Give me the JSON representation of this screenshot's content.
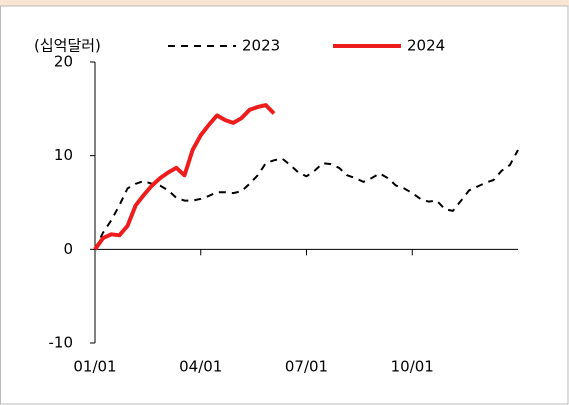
{
  "chart_data": {
    "type": "line",
    "y_label": "(십억달러)",
    "categories": [
      "01/01",
      null,
      null,
      null,
      null,
      null,
      null,
      null,
      null,
      null,
      null,
      null,
      null,
      "04/01",
      null,
      null,
      null,
      null,
      null,
      null,
      null,
      null,
      null,
      null,
      null,
      null,
      "07/01",
      null,
      null,
      null,
      null,
      null,
      null,
      null,
      null,
      null,
      null,
      null,
      null,
      "10/01",
      null,
      null,
      null,
      null,
      null,
      null,
      null,
      null,
      null,
      null,
      null,
      null,
      null
    ],
    "series": [
      {
        "name": "2023",
        "color": "#000000",
        "dash": true,
        "values": [
          0,
          1.8,
          3.1,
          4.7,
          6.5,
          7.0,
          7.3,
          7.0,
          6.8,
          6.3,
          5.5,
          5.2,
          5.2,
          5.4,
          5.7,
          6.1,
          6.1,
          6.0,
          6.2,
          7.0,
          7.9,
          9.2,
          9.5,
          9.7,
          9.0,
          8.2,
          7.8,
          8.4,
          9.2,
          9.1,
          8.7,
          7.9,
          7.6,
          7.2,
          7.6,
          8.1,
          7.6,
          6.8,
          6.5,
          6.0,
          5.4,
          5.1,
          5.2,
          4.3,
          4.1,
          5.2,
          6.3,
          6.7,
          7.1,
          7.4,
          8.4,
          9.0,
          10.6
        ]
      },
      {
        "name": "2024",
        "color": "#ee1c1c",
        "dash": false,
        "values": [
          0,
          1.2,
          1.6,
          1.5,
          2.5,
          4.7,
          5.8,
          6.8,
          7.6,
          8.2,
          8.7,
          7.9,
          10.6,
          12.2,
          13.3,
          14.3,
          13.8,
          13.5,
          14.0,
          14.9,
          15.2,
          15.4,
          14.5,
          null,
          null,
          null,
          null,
          null,
          null,
          null,
          null,
          null,
          null,
          null,
          null,
          null,
          null,
          null,
          null,
          null,
          null,
          null,
          null,
          null,
          null,
          null,
          null,
          null,
          null,
          null,
          null,
          null,
          null
        ]
      }
    ],
    "ylim": [
      -10,
      20
    ],
    "yticks": [
      -10,
      0,
      10,
      20
    ]
  }
}
